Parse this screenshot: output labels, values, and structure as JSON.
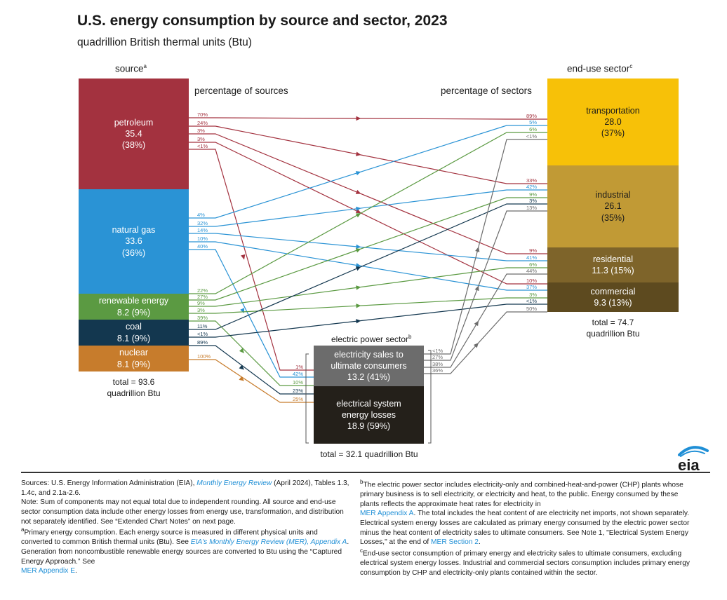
{
  "title": "U.S. energy consumption by source and sector, 2023",
  "subtitle": "quadrillion British thermal units (Btu)",
  "headers": {
    "source": "source",
    "source_sup": "a",
    "sector": "end-use sector",
    "sector_sup": "c",
    "pct_sources": "percentage of sources",
    "pct_sectors": "percentage of sectors",
    "electric_power": "electric power sector",
    "electric_power_sup": "b"
  },
  "sources": [
    {
      "key": "petroleum",
      "name": "petroleum",
      "value": "35.4",
      "share": "(38%)",
      "color": "#a3323f"
    },
    {
      "key": "gas",
      "name": "natural gas",
      "value": "33.6",
      "share": "(36%)",
      "color": "#2a93d5"
    },
    {
      "key": "renew",
      "name": "renewable energy",
      "value": "8.2 (9%)",
      "share": "",
      "color": "#5b9a42"
    },
    {
      "key": "coal",
      "name": "coal",
      "value": "8.1 (9%)",
      "share": "",
      "color": "#13374f"
    },
    {
      "key": "nuclear",
      "name": "nuclear",
      "value": "8.1 (9%)",
      "share": "",
      "color": "#c77c2c"
    }
  ],
  "sectors": [
    {
      "key": "transport",
      "name": "transportation",
      "value": "28.0",
      "share": "(37%)",
      "color": "#f7c108"
    },
    {
      "key": "industrial",
      "name": "industrial",
      "value": "26.1",
      "share": "(35%)",
      "color": "#c19a35"
    },
    {
      "key": "residential",
      "name": "residential",
      "value": "11.3 (15%)",
      "share": "",
      "color": "#7e642a"
    },
    {
      "key": "commercial",
      "name": "commercial",
      "value": "9.3 (13%)",
      "share": "",
      "color": "#5d4a1f"
    }
  ],
  "electric": {
    "sales_label": "electricity sales to ultimate consumers",
    "sales_value": "13.2 (41%)",
    "losses_label": "electrical system energy losses",
    "losses_value": "18.9 (59%)",
    "total": "total = 32.1 quadrillion Btu"
  },
  "totals": {
    "source_line1": "total = 93.6",
    "source_line2": "quadrillion Btu",
    "sector_line1": "total = 74.7",
    "sector_line2": "quadrillion Btu"
  },
  "flows": {
    "petroleum": {
      "to": [
        "transport",
        "industrial",
        "residential",
        "commercial",
        "electric"
      ],
      "src_pct": [
        "70%",
        "24%",
        "3%",
        "3%",
        "<1%"
      ],
      "dst_pct": [
        "89%",
        "33%",
        "9%",
        "10%",
        "1%"
      ]
    },
    "gas": {
      "to": [
        "transport",
        "industrial",
        "residential",
        "commercial",
        "electric"
      ],
      "src_pct": [
        "4%",
        "32%",
        "14%",
        "10%",
        "40%"
      ],
      "dst_pct": [
        "5%",
        "42%",
        "41%",
        "37%",
        "42%"
      ]
    },
    "renew": {
      "to": [
        "transport",
        "industrial",
        "residential",
        "commercial",
        "electric"
      ],
      "src_pct": [
        "22%",
        "27%",
        "9%",
        "3%",
        "39%"
      ],
      "dst_pct": [
        "6%",
        "9%",
        "6%",
        "3%",
        "10%"
      ]
    },
    "coal": {
      "to": [
        "industrial",
        "commercial",
        "electric"
      ],
      "src_pct": [
        "11%",
        "<1%",
        "89%"
      ],
      "dst_pct": [
        "3%",
        "<1%",
        "23%"
      ]
    },
    "nuclear": {
      "to": [
        "electric"
      ],
      "src_pct": [
        "100%"
      ],
      "dst_pct": [
        "25%"
      ]
    },
    "sales": {
      "to": [
        "transport",
        "industrial",
        "residential",
        "commercial"
      ],
      "src_pct": [
        "<1%",
        "27%",
        "38%",
        "36%"
      ],
      "dst_pct": [
        "<1%",
        "13%",
        "44%",
        "50%"
      ]
    }
  },
  "notes_left": {
    "sources_prefix": "Sources: U.S. Energy Information Administration (EIA), ",
    "mer_link": "Monthly Energy Review",
    "sources_suffix": " (April 2024), Tables 1.3, 1.4c, and 2.1a-2.6.",
    "note": "Note: Sum of components may not equal total due to independent rounding. All source and end-use sector consumption data include other energy losses from energy use, transformation, and distribution not separately identified. See “Extended Chart Notes” on next page.",
    "a_sup": "a",
    "a_text": "Primary energy consumption. Each energy source is measured in different physical units and converted to common British thermal units (Btu). See ",
    "a_link1": "EIA's Monthly Energy Review (MER), Appendix A",
    "a_text2": ". Generation from noncombustible renewable energy sources are converted to Btu using the “Captured Energy Approach.” See",
    "a_link2": "MER Appendix E",
    "a_end": "."
  },
  "notes_right": {
    "b_sup": "b",
    "b_text1": "The electric power sector includes electricity-only and combined-heat-and-power (CHP) plants whose primary business is to sell electricity, or electricity and heat, to the public. Energy consumed by these plants reflects the approximate heat rates for electricity in",
    "b_link1": "MER Appendix A",
    "b_text2": ". The total includes the heat content of are electricity net imports, not shown separately. Electrical system energy losses are calculated as primary energy consumed by the electric power sector minus the heat content of electricity sales to ultimate consumers. See Note 1, \"Electrical System Energy Losses,\" at the end of ",
    "b_link2": "MER Section 2",
    "b_end": ".",
    "c_sup": "c",
    "c_text": "End-use sector consumption of primary energy and electricity sales to ultimate consumers, excluding electrical system energy losses. Industrial and commercial sectors consumption includes primary energy consumption by CHP and electricity-only plants contained within the sector."
  },
  "logo": "eia",
  "sales_color": "#6c6c6c",
  "losses_color": "#24201a"
}
